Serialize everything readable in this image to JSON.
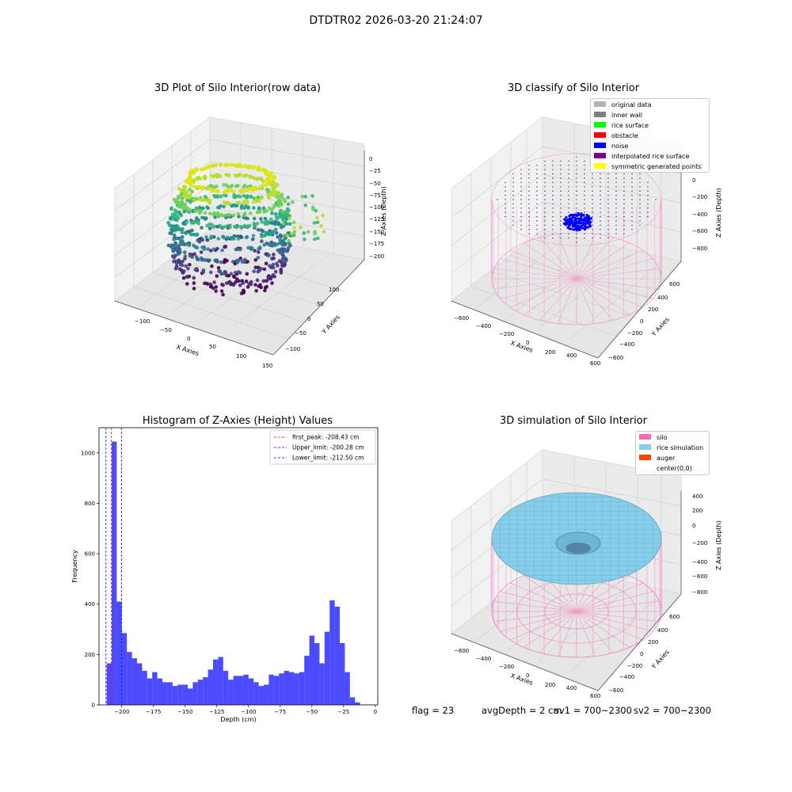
{
  "suptitle": "DTDTR02 2026-03-20 21:24:07",
  "panels": {
    "raw": {
      "title": "3D Plot of Silo Interior(row data)",
      "xlabel": "X Axies",
      "ylabel": "Y Axies",
      "zlabel": "Z Axies (Depth)",
      "xticks": [
        "−100",
        "−50",
        "0",
        "50",
        "100",
        "150"
      ],
      "yticks": [
        "100",
        "50",
        "0",
        "−50",
        "−100"
      ],
      "zticks": [
        "0",
        "−25",
        "−50",
        "−75",
        "−100",
        "−125",
        "−150",
        "−175",
        "−200"
      ]
    },
    "classify": {
      "title": "3D classify of Silo Interior",
      "xlabel": "X Axies",
      "ylabel": "Y Axies",
      "zlabel": "Z Axies (Depth)",
      "xticks": [
        "−600",
        "−400",
        "−200",
        "0",
        "200",
        "400",
        "600"
      ],
      "yticks": [
        "600",
        "400",
        "200",
        "0",
        "−200",
        "−400",
        "−600"
      ],
      "zticks": [
        "200",
        "0",
        "−200",
        "−400",
        "−600",
        "−800"
      ],
      "legend": [
        {
          "label": "original data",
          "color": "#b3b3b3"
        },
        {
          "label": "inner wall",
          "color": "#808080"
        },
        {
          "label": "rice surface",
          "color": "#00ff00"
        },
        {
          "label": "obstacle",
          "color": "#ff0000"
        },
        {
          "label": "noise",
          "color": "#0000ff"
        },
        {
          "label": "interpolated rice surface",
          "color": "#800080"
        },
        {
          "label": "symmetric generated points",
          "color": "#ffff00"
        }
      ]
    },
    "simulation": {
      "title": "3D simulation of Silo Interior",
      "xlabel": "X Axies",
      "ylabel": "Y Axies",
      "zlabel": "Z Axies (Depth)",
      "xticks": [
        "−600",
        "−400",
        "−200",
        "0",
        "200",
        "400",
        "600"
      ],
      "yticks": [
        "600",
        "400",
        "200",
        "0",
        "−200",
        "−400",
        "−600"
      ],
      "zticks": [
        "400",
        "200",
        "0",
        "−200",
        "−400",
        "−600",
        "−800"
      ],
      "legend": [
        {
          "label": "silo",
          "color": "#ff69b4"
        },
        {
          "label": "rice simulation",
          "color": "#87ceeb"
        },
        {
          "label": "auger",
          "color": "#ff4500"
        },
        {
          "label": "center(0,0)",
          "color": ""
        }
      ]
    }
  },
  "footer": {
    "flag": "flag = 23",
    "avg": "avgDepth = 2 cm",
    "sv1": "sv1 = 700~2300",
    "sv2": "sv2 = 700~2300"
  },
  "chart_data": {
    "type": "bar",
    "title": "Histogram of Z-Axies (Height) Values",
    "xlabel": "Depth (cm)",
    "ylabel": "Frequency",
    "xlim": [
      -218,
      2
    ],
    "ylim": [
      0,
      1100
    ],
    "xticks": [
      "−200",
      "−175",
      "−150",
      "−125",
      "−100",
      "−75",
      "−50",
      "−25",
      "0"
    ],
    "xtick_values": [
      -200,
      -175,
      -150,
      -125,
      -100,
      -75,
      -50,
      -25,
      0
    ],
    "yticks": [
      "0",
      "200",
      "400",
      "600",
      "800",
      "1000"
    ],
    "ytick_values": [
      0,
      200,
      400,
      600,
      800,
      1000
    ],
    "bar_color": "#0000ff",
    "bin_start": -212,
    "bin_width": 4,
    "values": [
      165,
      1045,
      410,
      285,
      210,
      185,
      165,
      135,
      105,
      130,
      105,
      90,
      90,
      75,
      80,
      80,
      65,
      90,
      100,
      110,
      140,
      180,
      190,
      135,
      100,
      115,
      115,
      120,
      105,
      90,
      75,
      80,
      120,
      115,
      125,
      135,
      130,
      125,
      130,
      195,
      275,
      245,
      165,
      290,
      415,
      390,
      245,
      130,
      30,
      10
    ],
    "vlines": [
      {
        "label": "first_peak: -208.43 cm",
        "x": -208.43,
        "color": "#ff0000"
      },
      {
        "label": "Upper_limit: -200.28 cm",
        "x": -200.28,
        "color": "#0000ff"
      },
      {
        "label": "Lower_limit: -212.50 cm",
        "x": -212.5,
        "color": "#0000ff"
      }
    ]
  }
}
